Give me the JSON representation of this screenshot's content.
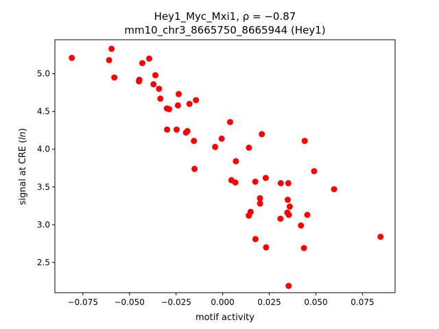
{
  "chart_data": {
    "type": "scatter",
    "title_line1": "Hey1_Myc_Mxi1, ρ = −0.87",
    "title_line2": "mm10_chr3_8665750_8665944 (Hey1)",
    "xlabel": "motif activity",
    "ylabel": "signal at CRE (ln)",
    "xlim": [
      -0.09,
      0.0925
    ],
    "ylim": [
      2.1,
      5.45
    ],
    "xticks": [
      -0.075,
      -0.05,
      -0.025,
      0.0,
      0.025,
      0.05,
      0.075
    ],
    "xtick_labels": [
      "−0.075",
      "−0.050",
      "−0.025",
      "0.000",
      "0.025",
      "0.050",
      "0.075"
    ],
    "yticks": [
      2.5,
      3.0,
      3.5,
      4.0,
      4.5,
      5.0
    ],
    "ytick_labels": [
      "2.5",
      "3.0",
      "3.5",
      "4.0",
      "4.5",
      "5.0"
    ],
    "grid": false,
    "marker_color": "#ff0000",
    "x": [
      -0.0809,
      -0.0596,
      -0.0609,
      -0.0581,
      -0.0394,
      -0.0431,
      -0.0361,
      -0.0447,
      -0.0449,
      -0.0371,
      -0.0341,
      -0.0236,
      -0.0334,
      -0.0143,
      -0.0299,
      -0.0287,
      -0.024,
      -0.0178,
      -0.0298,
      -0.0247,
      -0.0189,
      -0.0197,
      -0.0154,
      0.004,
      -0.0005,
      0.021,
      -0.004,
      0.0141,
      0.044,
      0.0071,
      -0.0151,
      0.0231,
      0.0491,
      0.0047,
      0.0068,
      0.0175,
      0.0312,
      0.0352,
      0.0598,
      0.02,
      0.0349,
      0.0201,
      0.036,
      0.015,
      0.0347,
      0.014,
      0.0355,
      0.0454,
      0.031,
      0.042,
      0.0176,
      0.0847,
      0.0233,
      0.0436,
      0.0354
    ],
    "y": [
      5.21,
      5.33,
      5.18,
      4.95,
      5.2,
      5.14,
      4.98,
      4.92,
      4.9,
      4.86,
      4.8,
      4.73,
      4.67,
      4.65,
      4.54,
      4.53,
      4.58,
      4.6,
      4.26,
      4.26,
      4.24,
      4.22,
      4.11,
      4.36,
      4.14,
      4.2,
      4.03,
      4.02,
      4.11,
      3.84,
      3.74,
      3.62,
      3.71,
      3.59,
      3.56,
      3.57,
      3.55,
      3.55,
      3.47,
      3.35,
      3.33,
      3.28,
      3.24,
      3.17,
      3.16,
      3.12,
      3.13,
      3.13,
      3.08,
      2.99,
      2.81,
      2.84,
      2.7,
      2.69,
      2.19
    ]
  }
}
